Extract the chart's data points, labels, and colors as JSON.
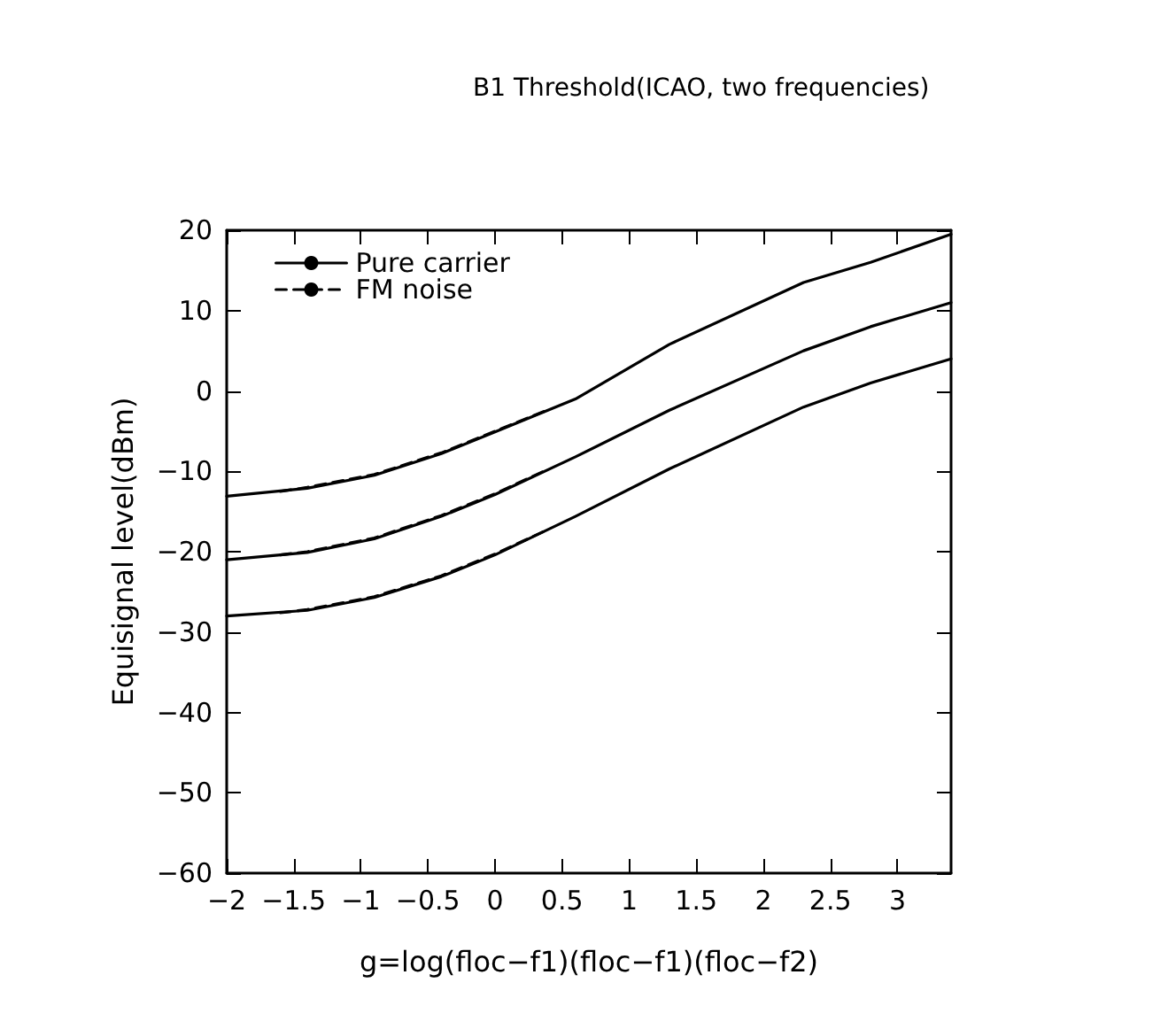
{
  "chart_data": {
    "type": "line",
    "title": "B1 Threshold(ICAO, two frequencies)",
    "xlabel": "g=log(floc−f1)(floc−f1)(floc−f2)",
    "ylabel": "Equisignal level(dBm)",
    "xlim": [
      -2,
      3.4
    ],
    "xticks": [
      -2,
      -1.5,
      -1,
      -0.5,
      0,
      0.5,
      1,
      1.5,
      2,
      2.5,
      3
    ],
    "ylim": [
      -60,
      20
    ],
    "yticks": [
      -60,
      -50,
      -40,
      -30,
      -20,
      -10,
      0,
      10,
      20
    ],
    "grid": false,
    "legend": "top left",
    "marker": "none",
    "series": [
      {
        "name": "Pure carrier",
        "color": "#000000",
        "line_style": "solid",
        "x": [
          -2,
          -1.4,
          -0.9,
          -0.4,
          0,
          0.6,
          1.3,
          2.3,
          2.8,
          3.4
        ],
        "values": [
          -13.1,
          -12.1,
          -10.5,
          -7.8,
          -5.1,
          -1,
          5.8,
          13.5,
          16,
          19.5
        ]
      },
      {
        "color": "#000000",
        "line_style": "solid",
        "x": [
          -2,
          -1.4,
          -0.9,
          -0.4,
          0,
          0.6,
          1.3,
          2.3,
          2.8,
          3.4
        ],
        "values": [
          -21,
          -20.1,
          -18.4,
          -15.6,
          -12.9,
          -8.2,
          -2.4,
          5,
          8,
          11
        ]
      },
      {
        "color": "#000000",
        "line_style": "solid",
        "x": [
          -2,
          -1.4,
          -0.9,
          -0.4,
          0,
          0.6,
          1.3,
          2.3,
          2.8,
          3.4
        ],
        "values": [
          -28,
          -27.3,
          -25.7,
          -23.1,
          -20.4,
          -15.6,
          -9.7,
          -2,
          1,
          4
        ]
      },
      {
        "name": "FM noise",
        "color": "#000000",
        "line_style": "dashed",
        "x": [
          -1.6,
          -1.4,
          -0.9,
          -0.4,
          0,
          0.4
        ],
        "values": [
          -12.5,
          -12,
          -10.4,
          -7.7,
          -5,
          -2.3
        ]
      },
      {
        "color": "#000000",
        "line_style": "dashed",
        "x": [
          -1.6,
          -1.4,
          -0.9,
          -0.4,
          0,
          0.4
        ],
        "values": [
          -20.4,
          -20,
          -18.3,
          -15.5,
          -12.8,
          -9.7
        ]
      },
      {
        "color": "#000000",
        "line_style": "dashed",
        "x": [
          -1.6,
          -1.4,
          -0.9,
          -0.4,
          0,
          0.4
        ],
        "values": [
          -27.6,
          -27.2,
          -25.6,
          -23,
          -20.3,
          -17.2
        ]
      }
    ]
  }
}
